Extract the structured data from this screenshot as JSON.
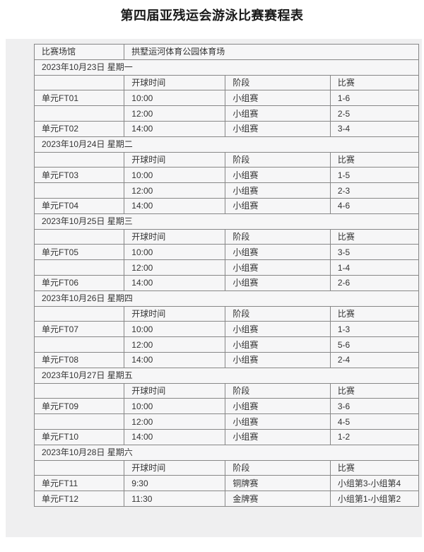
{
  "page": {
    "title": "第四届亚残运会游泳比赛赛程表"
  },
  "venue": {
    "label": "比赛场馆",
    "value": "拱墅运河体育公园体育场"
  },
  "columns": [
    "",
    "开球时间",
    "阶段",
    "比赛"
  ],
  "days": [
    {
      "date": "2023年10月23日 星期一",
      "rows": [
        {
          "unit": "单元FT01",
          "time": "10:00",
          "stage": "小组赛",
          "match": "1-6"
        },
        {
          "unit": "",
          "time": "12:00",
          "stage": "小组赛",
          "match": "2-5"
        },
        {
          "unit": "单元FT02",
          "time": "14:00",
          "stage": "小组赛",
          "match": "3-4"
        }
      ]
    },
    {
      "date": "2023年10月24日 星期二",
      "rows": [
        {
          "unit": "单元FT03",
          "time": "10:00",
          "stage": "小组赛",
          "match": "1-5"
        },
        {
          "unit": "",
          "time": "12:00",
          "stage": "小组赛",
          "match": "2-3"
        },
        {
          "unit": "单元FT04",
          "time": "14:00",
          "stage": "小组赛",
          "match": "4-6"
        }
      ]
    },
    {
      "date": "2023年10月25日 星期三",
      "rows": [
        {
          "unit": "单元FT05",
          "time": "10:00",
          "stage": "小组赛",
          "match": "3-5"
        },
        {
          "unit": "",
          "time": "12:00",
          "stage": "小组赛",
          "match": "1-4"
        },
        {
          "unit": "单元FT06",
          "time": "14:00",
          "stage": "小组赛",
          "match": "2-6"
        }
      ]
    },
    {
      "date": "2023年10月26日 星期四",
      "rows": [
        {
          "unit": "单元FT07",
          "time": "10:00",
          "stage": "小组赛",
          "match": "1-3"
        },
        {
          "unit": "",
          "time": "12:00",
          "stage": "小组赛",
          "match": "5-6"
        },
        {
          "unit": "单元FT08",
          "time": "14:00",
          "stage": "小组赛",
          "match": "2-4"
        }
      ]
    },
    {
      "date": "2023年10月27日 星期五",
      "rows": [
        {
          "unit": "单元FT09",
          "time": "10:00",
          "stage": "小组赛",
          "match": "3-6"
        },
        {
          "unit": "",
          "time": "12:00",
          "stage": "小组赛",
          "match": "4-5"
        },
        {
          "unit": "单元FT10",
          "time": "14:00",
          "stage": "小组赛",
          "match": "1-2"
        }
      ]
    },
    {
      "date": "2023年10月28日 星期六",
      "rows": [
        {
          "unit": "单元FT11",
          "time": "9:30",
          "stage": "铜牌赛",
          "match": "小组第3-小组第4"
        },
        {
          "unit": "单元FT12",
          "time": "11:30",
          "stage": "金牌赛",
          "match": "小组第1-小组第2"
        }
      ]
    }
  ],
  "colors": {
    "sheet_bg": "#efeff0",
    "cell_bg": "#f6f6f7",
    "border": "#878787",
    "text": "#333333",
    "title_text": "#1a1a1a"
  }
}
